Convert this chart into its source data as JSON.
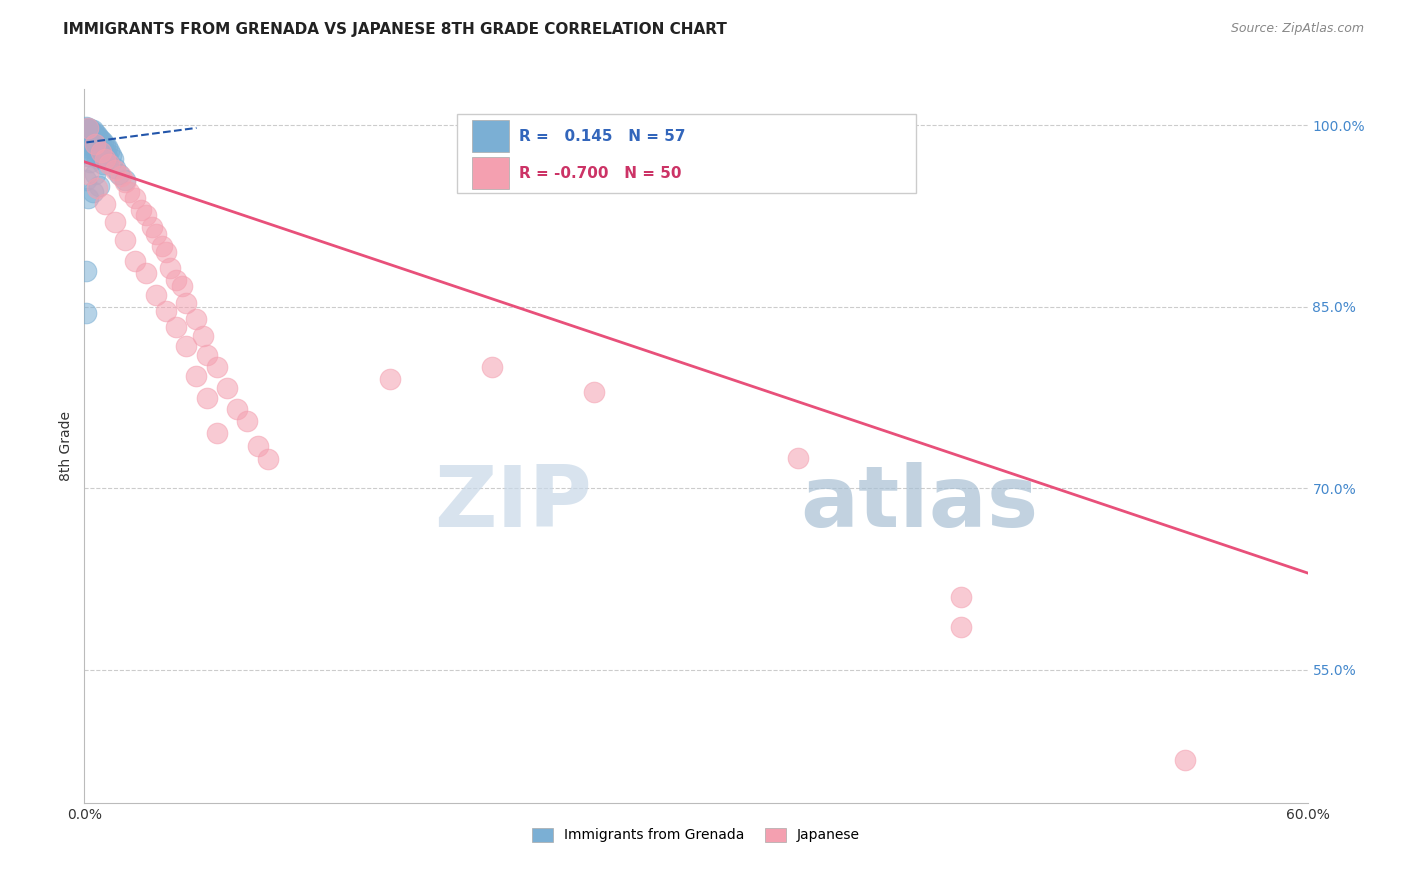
{
  "title": "IMMIGRANTS FROM GRENADA VS JAPANESE 8TH GRADE CORRELATION CHART",
  "source": "Source: ZipAtlas.com",
  "ylabel": "8th Grade",
  "xlim": [
    0.0,
    0.6
  ],
  "ylim": [
    0.44,
    1.03
  ],
  "yticks": [
    0.55,
    0.7,
    0.85,
    1.0
  ],
  "ytick_labels": [
    "55.0%",
    "70.0%",
    "85.0%",
    "100.0%"
  ],
  "xticks": [
    0.0,
    0.1,
    0.2,
    0.3,
    0.4,
    0.5,
    0.6
  ],
  "xtick_labels": [
    "0.0%",
    "",
    "",
    "",
    "",
    "",
    "60.0%"
  ],
  "blue_R": 0.145,
  "blue_N": 57,
  "pink_R": -0.7,
  "pink_N": 50,
  "legend_label_blue": "Immigrants from Grenada",
  "legend_label_pink": "Japanese",
  "watermark_zip": "ZIP",
  "watermark_atlas": "atlas",
  "blue_color": "#7bafd4",
  "pink_color": "#f4a0b0",
  "blue_line_color": "#2255aa",
  "pink_line_color": "#e8507a",
  "blue_scatter": [
    [
      0.001,
      0.999
    ],
    [
      0.002,
      0.998
    ],
    [
      0.001,
      0.997
    ],
    [
      0.003,
      0.997
    ],
    [
      0.002,
      0.996
    ],
    [
      0.004,
      0.996
    ],
    [
      0.001,
      0.995
    ],
    [
      0.003,
      0.995
    ],
    [
      0.005,
      0.994
    ],
    [
      0.002,
      0.994
    ],
    [
      0.001,
      0.993
    ],
    [
      0.004,
      0.993
    ],
    [
      0.006,
      0.992
    ],
    [
      0.003,
      0.992
    ],
    [
      0.002,
      0.991
    ],
    [
      0.005,
      0.991
    ],
    [
      0.007,
      0.99
    ],
    [
      0.001,
      0.99
    ],
    [
      0.004,
      0.989
    ],
    [
      0.003,
      0.989
    ],
    [
      0.008,
      0.988
    ],
    [
      0.002,
      0.988
    ],
    [
      0.006,
      0.987
    ],
    [
      0.005,
      0.987
    ],
    [
      0.009,
      0.986
    ],
    [
      0.003,
      0.986
    ],
    [
      0.007,
      0.985
    ],
    [
      0.004,
      0.985
    ],
    [
      0.01,
      0.984
    ],
    [
      0.002,
      0.984
    ],
    [
      0.008,
      0.983
    ],
    [
      0.006,
      0.983
    ],
    [
      0.011,
      0.982
    ],
    [
      0.003,
      0.981
    ],
    [
      0.009,
      0.98
    ],
    [
      0.005,
      0.98
    ],
    [
      0.012,
      0.979
    ],
    [
      0.004,
      0.978
    ],
    [
      0.01,
      0.977
    ],
    [
      0.007,
      0.977
    ],
    [
      0.013,
      0.976
    ],
    [
      0.002,
      0.975
    ],
    [
      0.011,
      0.974
    ],
    [
      0.006,
      0.973
    ],
    [
      0.014,
      0.972
    ],
    [
      0.003,
      0.97
    ],
    [
      0.009,
      0.968
    ],
    [
      0.015,
      0.965
    ],
    [
      0.005,
      0.96
    ],
    [
      0.001,
      0.955
    ],
    [
      0.007,
      0.95
    ],
    [
      0.004,
      0.945
    ],
    [
      0.002,
      0.94
    ],
    [
      0.001,
      0.88
    ],
    [
      0.001,
      0.845
    ],
    [
      0.017,
      0.96
    ],
    [
      0.02,
      0.955
    ]
  ],
  "pink_scatter": [
    [
      0.002,
      0.998
    ],
    [
      0.005,
      0.985
    ],
    [
      0.008,
      0.978
    ],
    [
      0.01,
      0.972
    ],
    [
      0.012,
      0.968
    ],
    [
      0.015,
      0.963
    ],
    [
      0.002,
      0.96
    ],
    [
      0.018,
      0.958
    ],
    [
      0.02,
      0.953
    ],
    [
      0.006,
      0.948
    ],
    [
      0.022,
      0.945
    ],
    [
      0.025,
      0.94
    ],
    [
      0.01,
      0.935
    ],
    [
      0.028,
      0.93
    ],
    [
      0.03,
      0.926
    ],
    [
      0.015,
      0.92
    ],
    [
      0.033,
      0.916
    ],
    [
      0.035,
      0.91
    ],
    [
      0.02,
      0.905
    ],
    [
      0.038,
      0.9
    ],
    [
      0.04,
      0.895
    ],
    [
      0.025,
      0.888
    ],
    [
      0.042,
      0.882
    ],
    [
      0.03,
      0.878
    ],
    [
      0.045,
      0.872
    ],
    [
      0.048,
      0.867
    ],
    [
      0.035,
      0.86
    ],
    [
      0.05,
      0.853
    ],
    [
      0.04,
      0.847
    ],
    [
      0.055,
      0.84
    ],
    [
      0.045,
      0.833
    ],
    [
      0.058,
      0.826
    ],
    [
      0.05,
      0.818
    ],
    [
      0.06,
      0.81
    ],
    [
      0.065,
      0.8
    ],
    [
      0.055,
      0.793
    ],
    [
      0.07,
      0.783
    ],
    [
      0.06,
      0.775
    ],
    [
      0.075,
      0.766
    ],
    [
      0.08,
      0.756
    ],
    [
      0.065,
      0.746
    ],
    [
      0.085,
      0.735
    ],
    [
      0.09,
      0.724
    ],
    [
      0.15,
      0.79
    ],
    [
      0.2,
      0.8
    ],
    [
      0.25,
      0.78
    ],
    [
      0.35,
      0.725
    ],
    [
      0.43,
      0.61
    ],
    [
      0.43,
      0.585
    ],
    [
      0.54,
      0.475
    ]
  ],
  "pink_line_x0": 0.0,
  "pink_line_y0": 0.97,
  "pink_line_x1": 0.6,
  "pink_line_y1": 0.63,
  "blue_line_x0": 0.001,
  "blue_line_y0": 0.986,
  "blue_line_x1": 0.055,
  "blue_line_y1": 0.998
}
